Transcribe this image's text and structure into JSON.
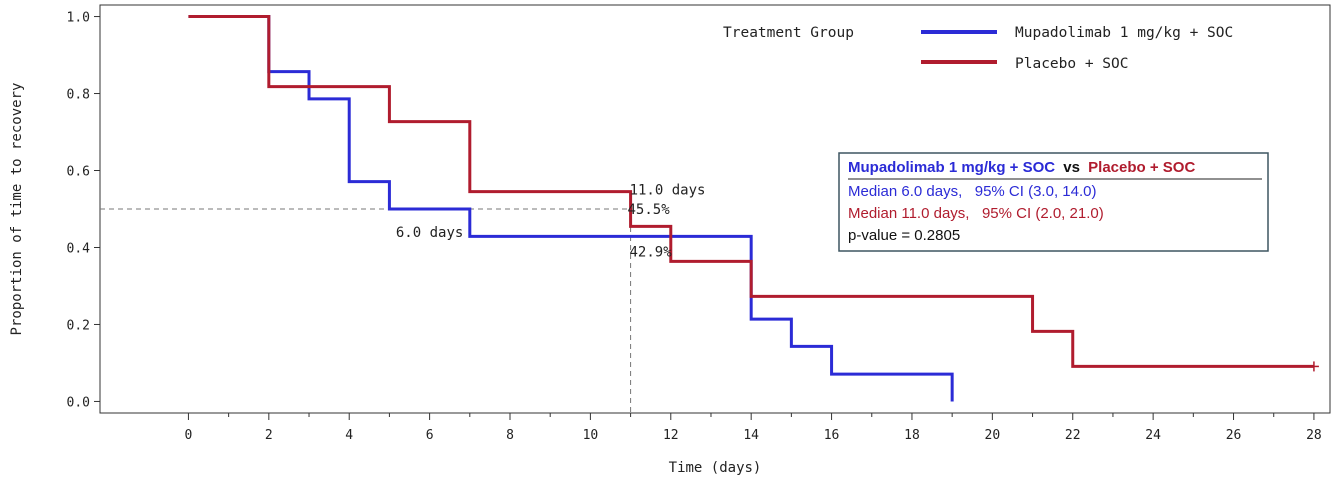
{
  "chart_data": {
    "type": "line",
    "subtype": "kaplan-meier step",
    "xlabel": "Time (days)",
    "ylabel": "Proportion of time to recovery",
    "xlim": [
      -2.2,
      28.4
    ],
    "ylim": [
      -0.03,
      1.03
    ],
    "x_ticks": [
      0,
      2,
      4,
      6,
      8,
      10,
      12,
      14,
      16,
      18,
      20,
      22,
      24,
      26,
      28
    ],
    "x_ticks_labels": [
      "0",
      "2",
      "4",
      "6",
      "8",
      "10",
      "12",
      "14",
      "16",
      "18",
      "20",
      "22",
      "24",
      "26",
      "28"
    ],
    "x_minor_ticks": [
      1,
      3,
      5,
      7,
      9,
      11,
      13,
      15,
      17,
      19,
      21,
      23,
      25,
      27
    ],
    "y_ticks": [
      0.0,
      0.2,
      0.4,
      0.6,
      0.8,
      1.0
    ],
    "y_ticks_labels": [
      "0.0",
      "0.2",
      "0.4",
      "0.6",
      "0.8",
      "1.0"
    ],
    "grid": false,
    "legend": {
      "title": "Treatment Group",
      "placement": "top-right",
      "entries": [
        "Mupadolimab 1 mg/kg + SOC",
        "Placebo + SOC"
      ]
    },
    "series": [
      {
        "name": "Mupadolimab 1 mg/kg + SOC",
        "color": "#2b2bd6",
        "points": [
          [
            0,
            1.0
          ],
          [
            2,
            0.857
          ],
          [
            3,
            0.786
          ],
          [
            4,
            0.571
          ],
          [
            5,
            0.5
          ],
          [
            7,
            0.429
          ],
          [
            14,
            0.214
          ],
          [
            15,
            0.143
          ],
          [
            16,
            0.071
          ],
          [
            19,
            0.0
          ]
        ],
        "end_x": 19,
        "censored": []
      },
      {
        "name": "Placebo + SOC",
        "color": "#b01c2e",
        "points": [
          [
            0,
            1.0
          ],
          [
            2,
            0.818
          ],
          [
            5,
            0.727
          ],
          [
            7,
            0.545
          ],
          [
            11,
            0.455
          ],
          [
            12,
            0.364
          ],
          [
            14,
            0.273
          ],
          [
            21,
            0.182
          ],
          [
            22,
            0.091
          ]
        ],
        "end_x": 28,
        "censored": [
          [
            28,
            0.091
          ]
        ]
      }
    ],
    "reference_lines": {
      "median_y": 0.5,
      "x_start": -2.2,
      "x_end": 11,
      "median_x": 11,
      "median_x_y_top": 0.5
    },
    "annotations": [
      {
        "text": "11.0 days",
        "x": 11,
        "y": 0.545
      },
      {
        "text": "45.5%",
        "x": 11,
        "y": 0.5
      },
      {
        "text": "6.0 days",
        "x": 6,
        "y": 0.44
      },
      {
        "text": "42.9%",
        "x": 11,
        "y": 0.39
      }
    ],
    "stats_box": {
      "title_a": "Mupadolimab 1 mg/kg + SOC",
      "title_vs": "vs",
      "title_b": "Placebo + SOC",
      "line_a": "Median 6.0 days,   95% CI (3.0, 14.0)",
      "line_b": "Median 11.0 days,   95% CI (2.0, 21.0)",
      "line_p": "p-value = 0.2805",
      "color_a": "#2b2bd6",
      "color_b": "#b01c2e",
      "border_color": "#3d5561"
    }
  }
}
